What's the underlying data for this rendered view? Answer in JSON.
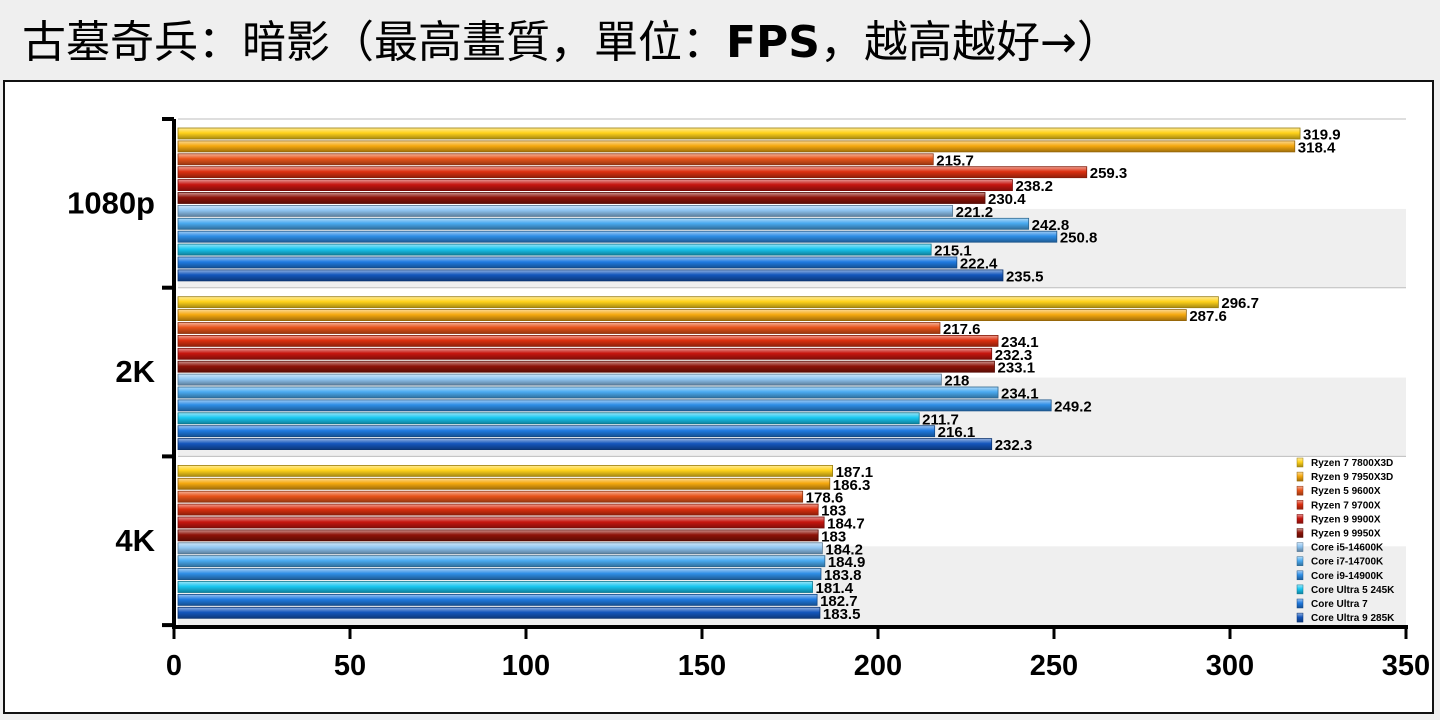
{
  "title": {
    "prefix": "古墓奇兵：暗影（最高畫質，單位：",
    "unit": "FPS",
    "suffix": "，越高越好→）"
  },
  "chart_data": {
    "type": "bar",
    "orientation": "horizontal",
    "title": "古墓奇兵：暗影（最高畫質，單位：FPS，越高越好→）",
    "xlabel": "",
    "ylabel": "",
    "xlim": [
      0,
      350
    ],
    "x_ticks": [
      0,
      50,
      100,
      150,
      200,
      250,
      300,
      350
    ],
    "grid": false,
    "legend_position": "bottom-right",
    "categories": [
      "1080p",
      "2K",
      "4K"
    ],
    "series": [
      {
        "name": "Ryzen 7 7800X3D",
        "color": "#ffd21a",
        "values": [
          319.9,
          296.7,
          187.1
        ]
      },
      {
        "name": "Ryzen 9 7950X3D",
        "color": "#f6a90f",
        "values": [
          318.4,
          287.6,
          186.3
        ]
      },
      {
        "name": "Ryzen 5 9600X",
        "color": "#e8541a",
        "values": [
          215.7,
          217.6,
          178.6
        ]
      },
      {
        "name": "Ryzen 7 9700X",
        "color": "#dc2f10",
        "values": [
          259.3,
          234.1,
          183
        ]
      },
      {
        "name": "Ryzen 9 9900X",
        "color": "#c6160f",
        "values": [
          238.2,
          232.3,
          184.7
        ]
      },
      {
        "name": "Ryzen 9 9950X",
        "color": "#8e1308",
        "values": [
          230.4,
          233.1,
          183
        ]
      },
      {
        "name": "Core i5-14600K",
        "color": "#8ec4f1",
        "values": [
          221.2,
          218,
          184.2
        ]
      },
      {
        "name": "Core i7-14700K",
        "color": "#4aaaf0",
        "values": [
          242.8,
          234.1,
          184.9
        ]
      },
      {
        "name": "Core i9-14900K",
        "color": "#2e8ee6",
        "values": [
          250.8,
          249.2,
          183.8
        ]
      },
      {
        "name": "Core Ultra 5 245K",
        "color": "#18c6f0",
        "values": [
          215.1,
          211.7,
          181.4
        ]
      },
      {
        "name": "Core Ultra 7",
        "color": "#1f7ae0",
        "values": [
          222.4,
          216.1,
          182.7
        ]
      },
      {
        "name": "Core Ultra 9 285K",
        "color": "#1456bc",
        "values": [
          235.5,
          232.3,
          183.5
        ]
      }
    ]
  }
}
